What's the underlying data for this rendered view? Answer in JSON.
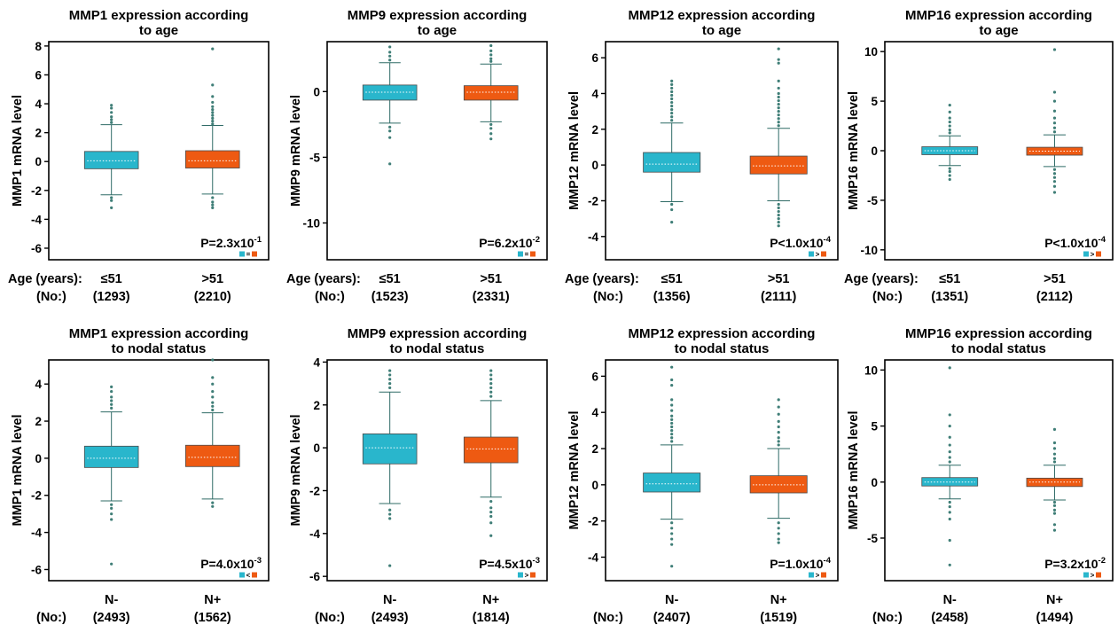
{
  "colors": {
    "group_a": "#29b6cc",
    "group_b": "#ee5a12",
    "whisker": "#2f6b66",
    "outlier": "#3f7e77"
  },
  "chart_data": [
    {
      "type": "box",
      "title_lines": [
        "MMP1 expression according",
        "to age"
      ],
      "ylabel": "MMP1 mRNA level",
      "ylim": [
        -6.8,
        8.3
      ],
      "yticks": [
        -6,
        -4,
        -2,
        0,
        2,
        4,
        6,
        8
      ],
      "row_label": "Age (years):",
      "count_label": "(No:)",
      "groups": [
        {
          "label": "≤51",
          "n": "(1293)",
          "q1": -0.5,
          "median": 0.05,
          "q3": 0.7,
          "low": -2.3,
          "high": 2.55,
          "outliers": [
            2.7,
            2.9,
            3.1,
            3.4,
            3.7,
            3.9,
            -2.5,
            -2.7,
            -3.2
          ]
        },
        {
          "label": ">51",
          "n": "(2210)",
          "q1": -0.45,
          "median": 0.05,
          "q3": 0.75,
          "low": -2.25,
          "high": 2.5,
          "outliers": [
            2.6,
            2.8,
            3.0,
            3.2,
            3.4,
            3.6,
            3.8,
            4.1,
            4.5,
            5.3,
            7.8,
            -2.5,
            -2.8,
            -3.0,
            -3.2
          ]
        }
      ],
      "p_value": "P=2.3x10",
      "p_exp": "-1",
      "relation": "="
    },
    {
      "type": "box",
      "title_lines": [
        "MMP9 expression according",
        "to age"
      ],
      "ylabel": "MMP9 mRNA level",
      "ylim": [
        -12.8,
        3.8
      ],
      "yticks": [
        -10,
        -5,
        0
      ],
      "row_label": "Age (years):",
      "count_label": "(No:)",
      "groups": [
        {
          "label": "≤51",
          "n": "(1523)",
          "q1": -0.65,
          "median": -0.05,
          "q3": 0.5,
          "low": -2.4,
          "high": 2.2,
          "outliers": [
            2.4,
            2.7,
            3.0,
            3.4,
            -2.7,
            -3.0,
            -3.5,
            -5.5
          ]
        },
        {
          "label": ">51",
          "n": "(2331)",
          "q1": -0.65,
          "median": -0.05,
          "q3": 0.45,
          "low": -2.3,
          "high": 2.1,
          "outliers": [
            2.3,
            2.5,
            2.8,
            3.1,
            3.5,
            -2.5,
            -2.8,
            -3.2,
            -3.6
          ]
        }
      ],
      "p_value": "P=6.2x10",
      "p_exp": "-2",
      "relation": "="
    },
    {
      "type": "box",
      "title_lines": [
        "MMP12 expression according",
        "to age"
      ],
      "ylabel": "MMP12 mRNA level",
      "ylim": [
        -5.3,
        6.9
      ],
      "yticks": [
        -4,
        -2,
        0,
        2,
        4,
        6
      ],
      "row_label": "Age (years):",
      "count_label": "(No:)",
      "groups": [
        {
          "label": "≤51",
          "n": "(1356)",
          "q1": -0.4,
          "median": 0.05,
          "q3": 0.7,
          "low": -2.05,
          "high": 2.35,
          "outliers": [
            2.5,
            2.7,
            2.9,
            3.1,
            3.3,
            3.5,
            3.7,
            3.9,
            4.1,
            4.3,
            4.5,
            4.7,
            -2.2,
            -2.5,
            -3.2
          ]
        },
        {
          "label": ">51",
          "n": "(2111)",
          "q1": -0.5,
          "median": -0.05,
          "q3": 0.5,
          "low": -2.0,
          "high": 2.05,
          "outliers": [
            2.2,
            2.4,
            2.6,
            2.8,
            3.0,
            3.2,
            3.4,
            3.6,
            3.8,
            4.0,
            4.3,
            4.7,
            5.7,
            5.9,
            6.5,
            -2.2,
            -2.4,
            -2.6,
            -2.8,
            -3.0,
            -3.2,
            -3.4
          ]
        }
      ],
      "p_value": "P<1.0x10",
      "p_exp": "-4",
      "relation": ">"
    },
    {
      "type": "box",
      "title_lines": [
        "MMP16 expression according",
        "to age"
      ],
      "ylabel": "MMP16 mRNA level",
      "ylim": [
        -11.0,
        11.0
      ],
      "yticks": [
        -10,
        -5,
        0,
        5,
        10
      ],
      "row_label": "Age (years):",
      "count_label": "(No:)",
      "groups": [
        {
          "label": "≤51",
          "n": "(1351)",
          "q1": -0.4,
          "median": 0.0,
          "q3": 0.4,
          "low": -1.5,
          "high": 1.5,
          "outliers": [
            1.8,
            2.1,
            2.5,
            2.9,
            3.3,
            3.9,
            4.6,
            -1.8,
            -2.1,
            -2.5,
            -2.9
          ]
        },
        {
          "label": ">51",
          "n": "(2112)",
          "q1": -0.45,
          "median": -0.05,
          "q3": 0.35,
          "low": -1.6,
          "high": 1.6,
          "outliers": [
            1.9,
            2.3,
            2.8,
            3.3,
            4.0,
            5.0,
            5.9,
            10.2,
            -1.9,
            -2.3,
            -2.7,
            -3.1,
            -3.6,
            -4.2
          ]
        }
      ],
      "p_value": "P<1.0x10",
      "p_exp": "-4",
      "relation": ">"
    },
    {
      "type": "box",
      "title_lines": [
        "MMP1 expression according",
        "to nodal status"
      ],
      "ylabel": "MMP1 mRNA level",
      "ylim": [
        -6.6,
        5.3
      ],
      "yticks": [
        -6,
        -4,
        -2,
        0,
        2,
        4
      ],
      "row_label": "",
      "count_label": "(No:)",
      "groups": [
        {
          "label": "N-",
          "n": "(2493)",
          "q1": -0.5,
          "median": 0.0,
          "q3": 0.65,
          "low": -2.3,
          "high": 2.5,
          "outliers": [
            2.7,
            2.9,
            3.1,
            3.3,
            3.6,
            3.85,
            -2.5,
            -2.7,
            -3.0,
            -3.3,
            -5.7
          ]
        },
        {
          "label": "N+",
          "n": "(1562)",
          "q1": -0.45,
          "median": 0.05,
          "q3": 0.7,
          "low": -2.2,
          "high": 2.45,
          "outliers": [
            2.6,
            2.8,
            3.0,
            3.3,
            3.6,
            4.0,
            4.35,
            5.3,
            -2.4,
            -2.6
          ]
        }
      ],
      "p_value": "P=4.0x10",
      "p_exp": "-3",
      "relation": "<"
    },
    {
      "type": "box",
      "title_lines": [
        "MMP9 expression according",
        "to nodal status"
      ],
      "ylabel": "MMP9 mRNA level",
      "ylim": [
        -6.2,
        4.1
      ],
      "yticks": [
        -6,
        -4,
        -2,
        0,
        2,
        4
      ],
      "row_label": "",
      "count_label": "(No:)",
      "groups": [
        {
          "label": "N-",
          "n": "(2493)",
          "q1": -0.75,
          "median": 0.0,
          "q3": 0.65,
          "low": -2.6,
          "high": 2.6,
          "outliers": [
            2.8,
            3.0,
            3.2,
            3.4,
            3.6,
            -2.9,
            -3.1,
            -3.3,
            -5.5
          ]
        },
        {
          "label": "N+",
          "n": "(1814)",
          "q1": -0.7,
          "median": -0.05,
          "q3": 0.5,
          "low": -2.3,
          "high": 2.2,
          "outliers": [
            2.4,
            2.6,
            2.8,
            3.0,
            3.2,
            3.4,
            3.6,
            -2.5,
            -2.8,
            -3.0,
            -3.2,
            -3.5,
            -4.1
          ]
        }
      ],
      "p_value": "P=4.5x10",
      "p_exp": "-3",
      "relation": ">"
    },
    {
      "type": "box",
      "title_lines": [
        "MMP12 expression according",
        "to nodal status"
      ],
      "ylabel": "MMP12 mRNA level",
      "ylim": [
        -5.3,
        6.9
      ],
      "yticks": [
        -4,
        -2,
        0,
        2,
        4,
        6
      ],
      "row_label": "",
      "count_label": "(No:)",
      "groups": [
        {
          "label": "N-",
          "n": "(2407)",
          "q1": -0.4,
          "median": 0.05,
          "q3": 0.65,
          "low": -1.9,
          "high": 2.2,
          "outliers": [
            2.4,
            2.6,
            2.8,
            3.0,
            3.2,
            3.4,
            3.6,
            3.8,
            4.1,
            4.4,
            4.7,
            5.5,
            5.8,
            6.5,
            -2.1,
            -2.4,
            -2.7,
            -3.0,
            -3.3,
            -4.5
          ]
        },
        {
          "label": "N+",
          "n": "(1519)",
          "q1": -0.45,
          "median": 0.0,
          "q3": 0.5,
          "low": -1.85,
          "high": 2.0,
          "outliers": [
            2.2,
            2.4,
            2.6,
            2.9,
            3.2,
            3.5,
            3.9,
            4.3,
            4.7,
            -2.1,
            -2.4,
            -2.7,
            -3.0,
            -3.2
          ]
        }
      ],
      "p_value": "P=1.0x10",
      "p_exp": "-4",
      "relation": ">"
    },
    {
      "type": "box",
      "title_lines": [
        "MMP16 expression according",
        "to nodal status"
      ],
      "ylabel": "MMP16 mRNA level",
      "ylim": [
        -8.8,
        10.9
      ],
      "yticks": [
        -5,
        0,
        5,
        10
      ],
      "row_label": "",
      "count_label": "(No:)",
      "groups": [
        {
          "label": "N-",
          "n": "(2458)",
          "q1": -0.35,
          "median": 0.0,
          "q3": 0.4,
          "low": -1.5,
          "high": 1.5,
          "outliers": [
            1.8,
            2.2,
            2.7,
            3.3,
            4.0,
            5.0,
            6.0,
            10.2,
            -1.8,
            -2.2,
            -2.7,
            -3.3,
            -5.2,
            -7.4
          ]
        },
        {
          "label": "N+",
          "n": "(1494)",
          "q1": -0.4,
          "median": 0.0,
          "q3": 0.35,
          "low": -1.6,
          "high": 1.5,
          "outliers": [
            1.8,
            2.1,
            2.5,
            3.0,
            3.5,
            4.7,
            -1.8,
            -2.1,
            -2.5,
            -2.8,
            -3.8,
            -4.3
          ]
        }
      ],
      "p_value": "P=3.2x10",
      "p_exp": "-2",
      "relation": ">"
    }
  ]
}
